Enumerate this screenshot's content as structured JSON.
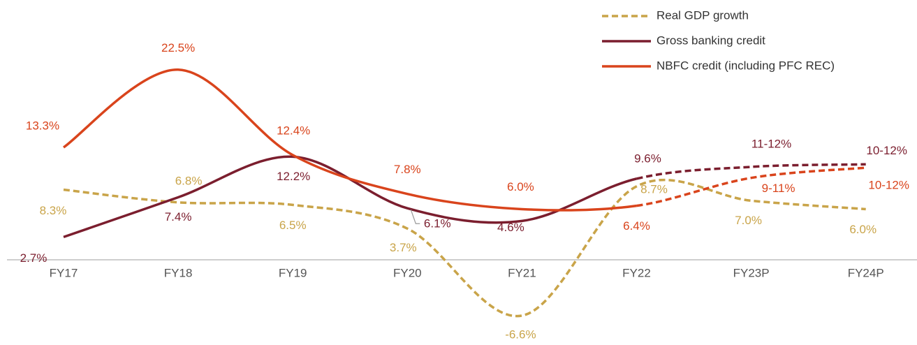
{
  "chart_data": {
    "type": "line",
    "categories": [
      "FY17",
      "FY18",
      "FY19",
      "FY20",
      "FY21",
      "FY22",
      "FY23P",
      "FY24P"
    ],
    "projection_from": "FY22",
    "ylim": [
      -9,
      25
    ],
    "smooth": true,
    "legend": "top-right",
    "series": [
      {
        "name": "Real GDP growth",
        "color": "#c9a449",
        "style": "dashed",
        "values": [
          8.3,
          6.8,
          6.5,
          3.7,
          -6.6,
          8.7,
          7.0,
          6.0
        ],
        "value_labels": [
          "8.3%",
          "6.8%",
          "6.5%",
          "3.7%",
          "-6.6%",
          "8.7%",
          "7.0%",
          "6.0%"
        ]
      },
      {
        "name": "Gross banking credit",
        "color": "#7b1e2e",
        "style": "solid",
        "values": [
          2.7,
          7.4,
          12.2,
          6.1,
          4.6,
          9.6,
          11,
          11.3
        ],
        "value_labels": [
          "2.7%",
          "7.4%",
          "12.2%",
          "6.1%",
          "4.6%",
          "9.6%",
          "11-12%",
          "10-12%"
        ]
      },
      {
        "name": "NBFC credit (including PFC REC)",
        "color": "#d9441c",
        "style": "solid",
        "values": [
          13.3,
          22.5,
          12.4,
          7.8,
          6.0,
          6.4,
          9.7,
          10.9
        ],
        "value_labels": [
          "13.3%",
          "22.5%",
          "12.4%",
          "7.8%",
          "6.0%",
          "6.4%",
          "9-11%",
          "10-12%"
        ]
      }
    ]
  }
}
